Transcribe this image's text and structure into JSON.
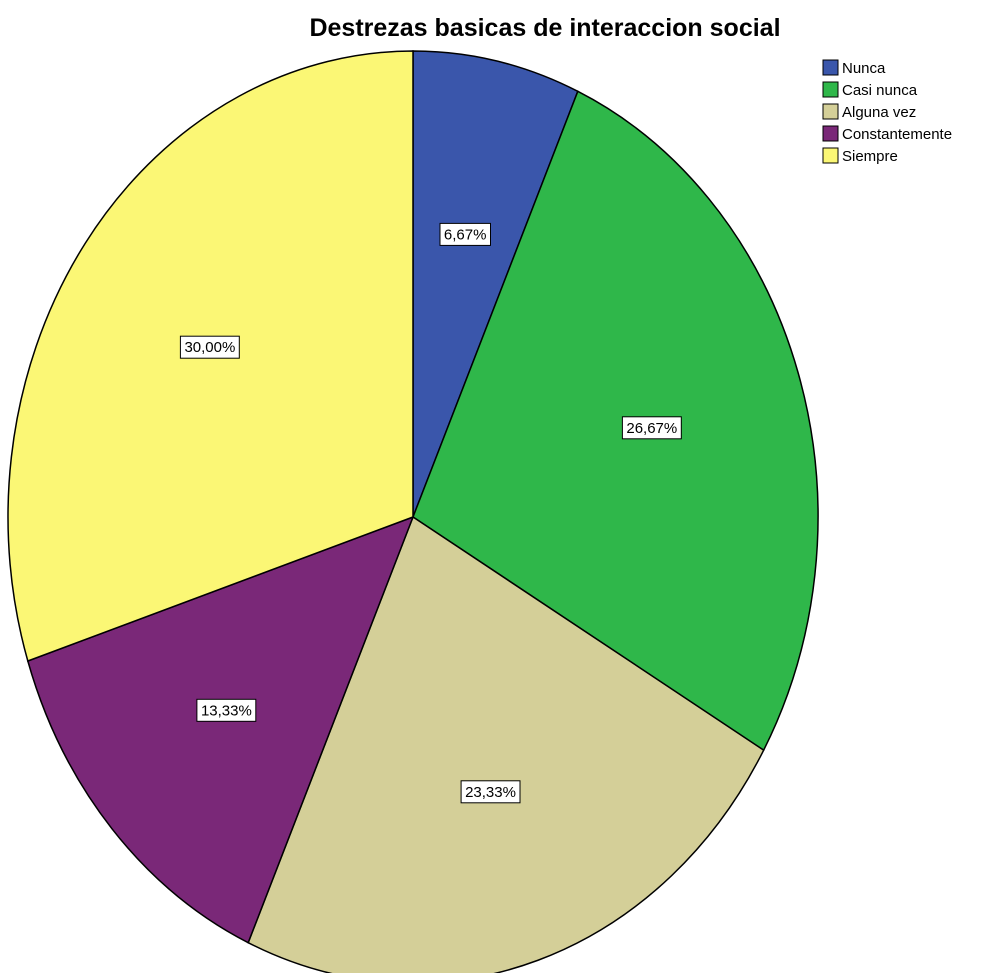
{
  "chart_data": {
    "type": "pie",
    "title": "Destrezas basicas de interaccion social",
    "start": "12 o'clock",
    "direction": "clockwise",
    "legend_position": "top-right",
    "slices": [
      {
        "name": "Nunca",
        "value": 6.67,
        "label": "6,67%",
        "color": "#3a56ab"
      },
      {
        "name": "Casi nunca",
        "value": 26.67,
        "label": "26,67%",
        "color": "#2fb74a"
      },
      {
        "name": "Alguna vez",
        "value": 23.33,
        "label": "23,33%",
        "color": "#d4cf98"
      },
      {
        "name": "Constantemente",
        "value": 13.33,
        "label": "13,33%",
        "color": "#7a2878"
      },
      {
        "name": "Siempre",
        "value": 30.0,
        "label": "30,00%",
        "color": "#fbf775"
      }
    ]
  }
}
